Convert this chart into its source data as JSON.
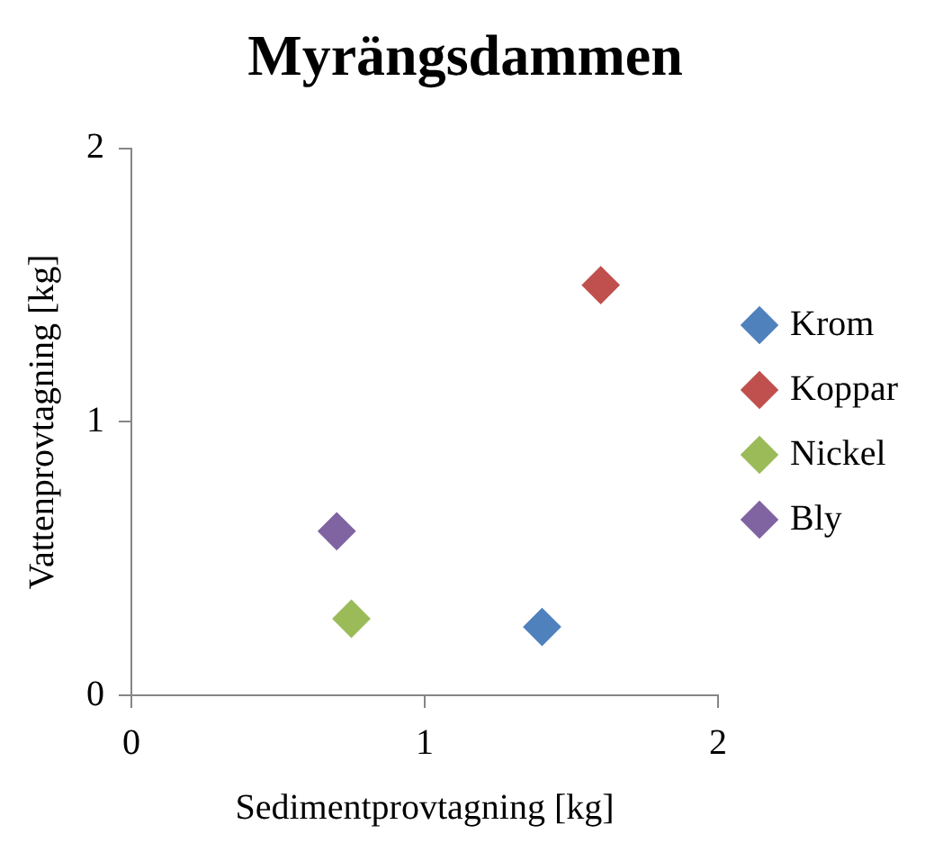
{
  "chart_data": {
    "type": "scatter",
    "title": "Myrängsdammen",
    "xlabel": "Sedimentprovtagning [kg]",
    "ylabel": "Vattenprovtagning [kg]",
    "xlim": [
      0,
      2
    ],
    "xticks": [
      0,
      1,
      2
    ],
    "ylim": [
      0,
      2
    ],
    "yticks": [
      0,
      1,
      2
    ],
    "grid": false,
    "legend": "right",
    "marker": "diamond",
    "series": [
      {
        "name": "Krom",
        "color": "#4f81bd",
        "x": [
          1.4
        ],
        "values": [
          0.25
        ]
      },
      {
        "name": "Koppar",
        "color": "#c0504d",
        "x": [
          1.6
        ],
        "values": [
          1.5
        ]
      },
      {
        "name": "Nickel",
        "color": "#9bbb59",
        "x": [
          0.75
        ],
        "values": [
          0.28
        ]
      },
      {
        "name": "Bly",
        "color": "#8064a2",
        "x": [
          0.7
        ],
        "values": [
          0.6
        ]
      }
    ]
  }
}
